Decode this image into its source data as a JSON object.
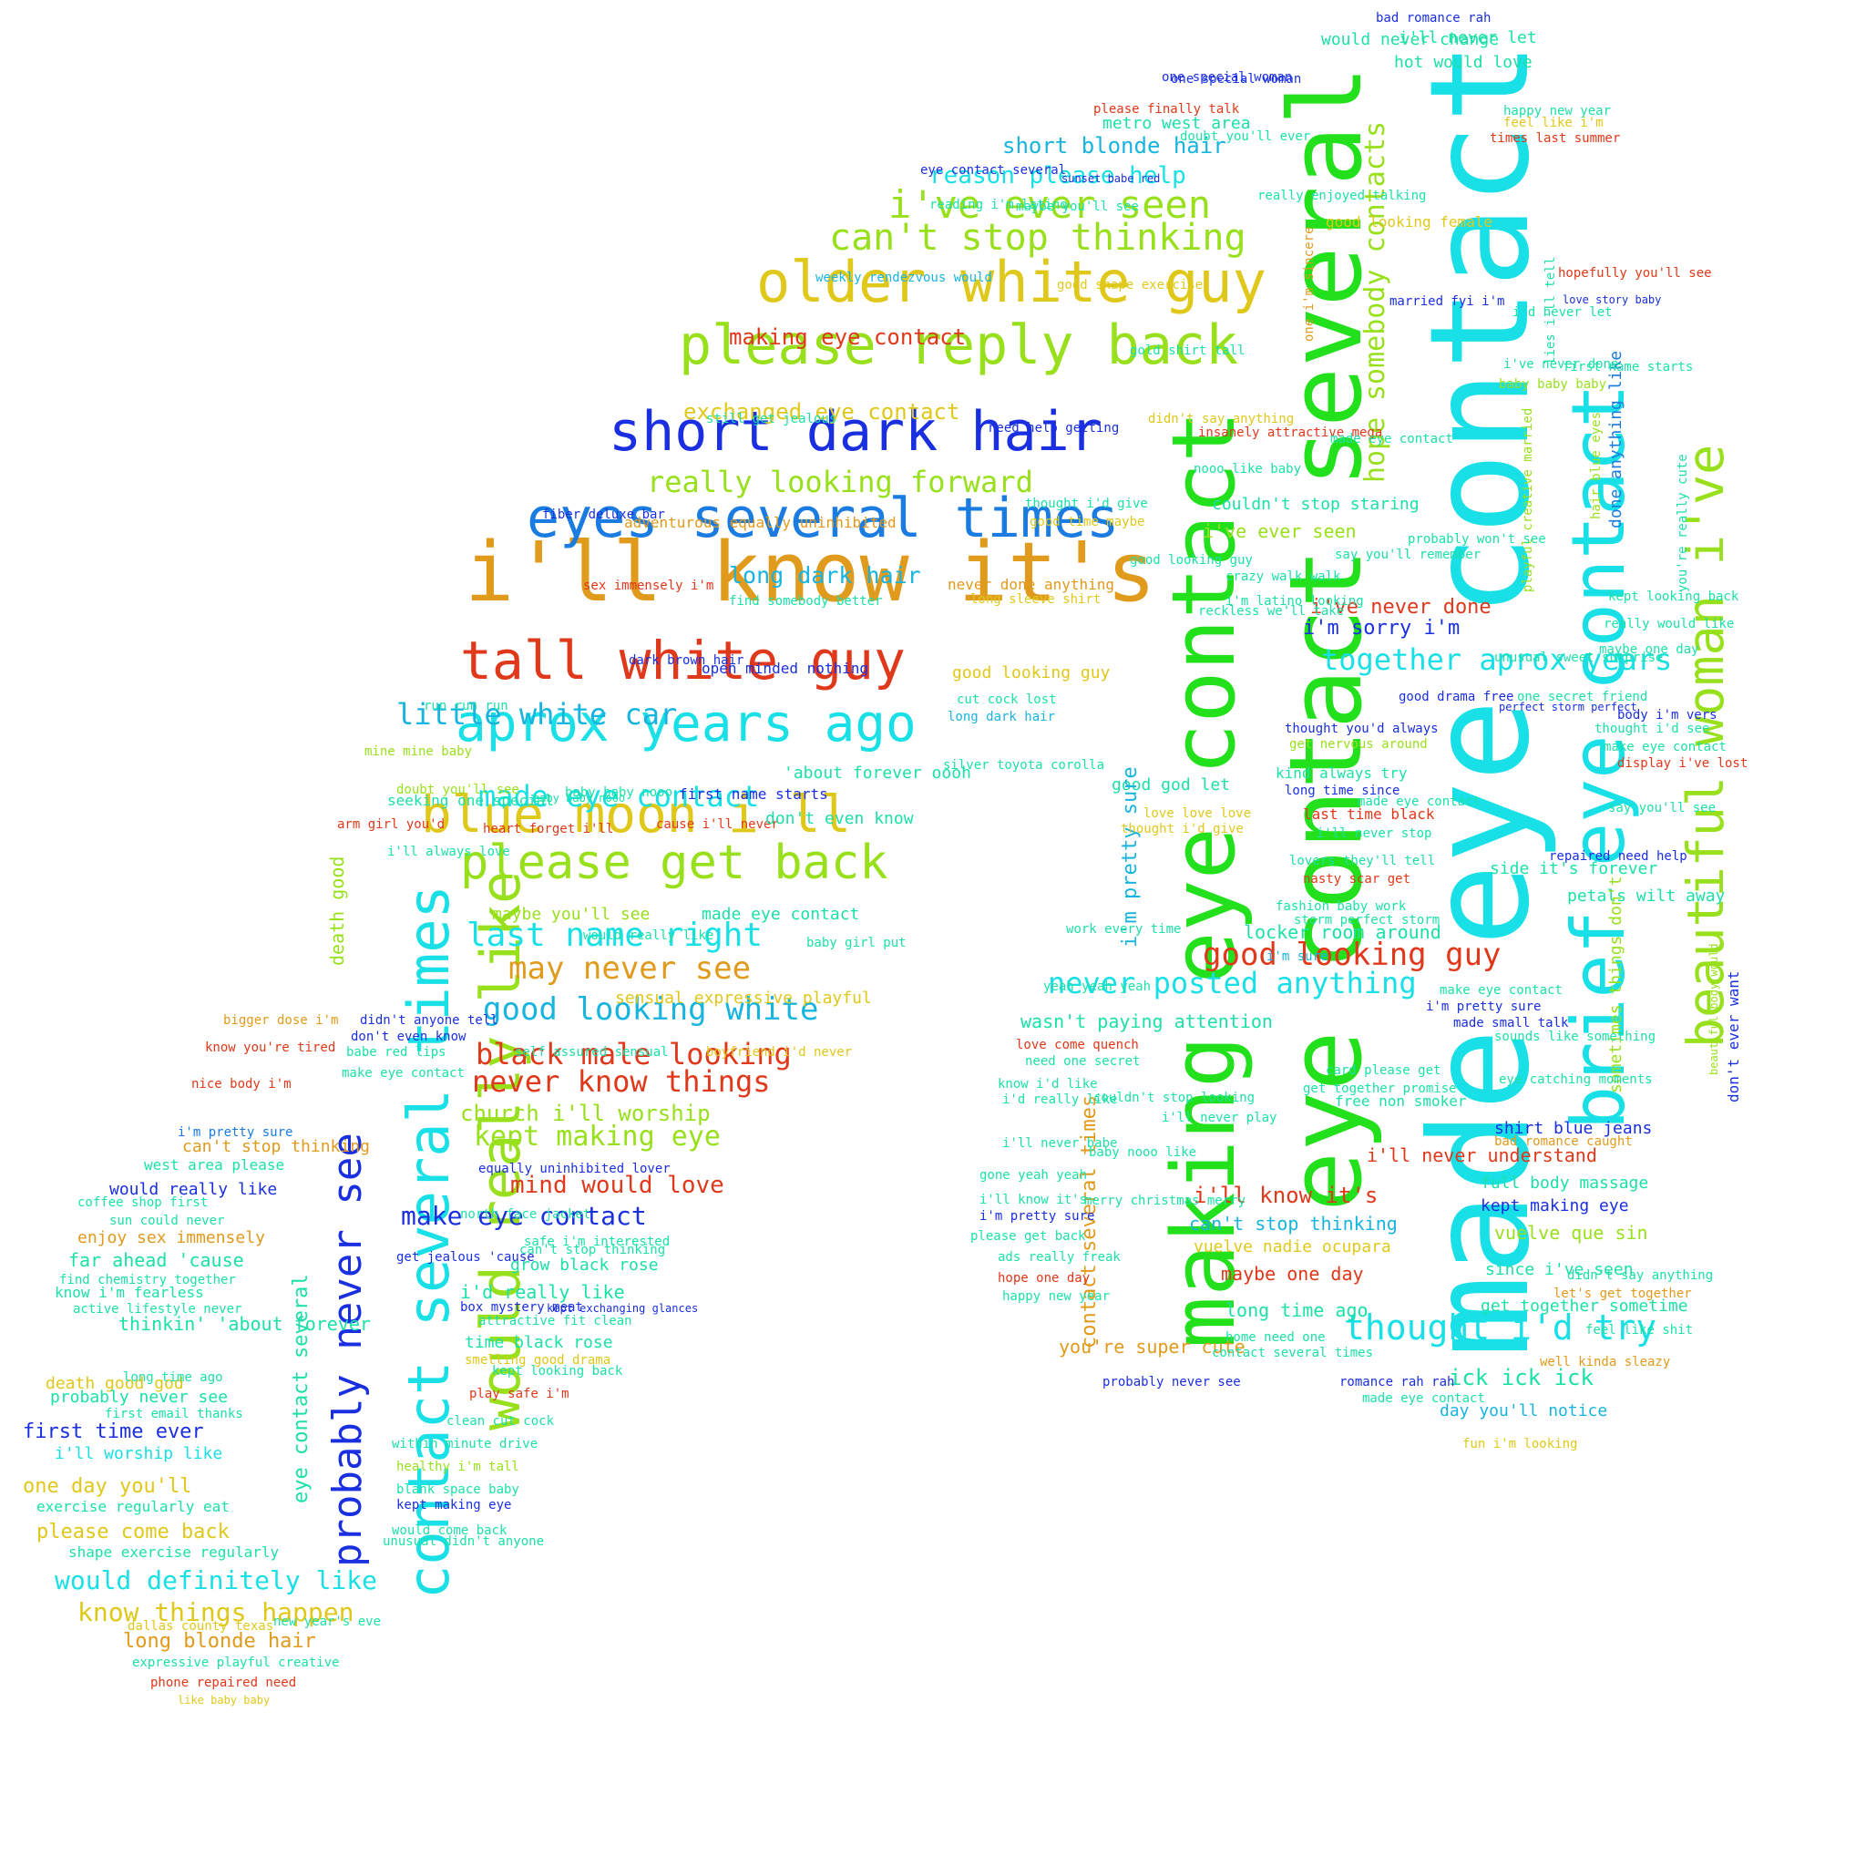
{
  "palette": {
    "cyan": "#18e0e6",
    "green": "#22e01c",
    "lime": "#98e01c",
    "yellow": "#e0c81a",
    "orange": "#e09a1c",
    "red": "#e0381a",
    "blue": "#1a2fe0",
    "azure": "#1a7be0",
    "sky": "#18b4e0",
    "teal": "#1ce0a8"
  },
  "words": [
    {
      "text": "made eye contact",
      "color": "cyan"
    },
    {
      "text": "eye contact several",
      "color": "green"
    },
    {
      "text": "making eye contact",
      "color": "green"
    },
    {
      "text": "brief eye contact",
      "color": "cyan"
    },
    {
      "text": "beautiful woman i've",
      "color": "lime"
    },
    {
      "text": "i'll know it's",
      "color": "orange"
    },
    {
      "text": "older white guy",
      "color": "yellow"
    },
    {
      "text": "please reply back",
      "color": "lime"
    },
    {
      "text": "short dark hair",
      "color": "blue"
    },
    {
      "text": "eyes several times",
      "color": "azure"
    },
    {
      "text": "tall white guy",
      "color": "red"
    },
    {
      "text": "aprox years ago",
      "color": "cyan"
    },
    {
      "text": "blue moon i ll",
      "color": "yellow"
    },
    {
      "text": "please get back",
      "color": "lime"
    },
    {
      "text": "contact several times",
      "color": "cyan"
    },
    {
      "text": "would really like",
      "color": "lime"
    },
    {
      "text": "probably never see",
      "color": "blue"
    },
    {
      "text": "i've ever seen",
      "color": "lime"
    },
    {
      "text": "can't stop thinking",
      "color": "lime"
    },
    {
      "text": "really looking forward",
      "color": "lime"
    },
    {
      "text": "long dark hair",
      "color": "sky"
    },
    {
      "text": "little white car",
      "color": "sky"
    },
    {
      "text": "made eye contact",
      "color": "cyan"
    },
    {
      "text": "last name right",
      "color": "cyan"
    },
    {
      "text": "may never see",
      "color": "orange"
    },
    {
      "text": "good looking white",
      "color": "sky"
    },
    {
      "text": "black male looking",
      "color": "red"
    },
    {
      "text": "never know things",
      "color": "red"
    },
    {
      "text": "kept making eye",
      "color": "lime"
    },
    {
      "text": "make eye contact",
      "color": "blue"
    },
    {
      "text": "mind would love",
      "color": "red"
    },
    {
      "text": "good looking guy",
      "color": "red"
    },
    {
      "text": "never posted anything",
      "color": "cyan"
    },
    {
      "text": "together aprox years",
      "color": "cyan"
    },
    {
      "text": "thought i'd try",
      "color": "cyan"
    },
    {
      "text": "know things happen",
      "color": "yellow"
    },
    {
      "text": "would definitely like",
      "color": "cyan"
    },
    {
      "text": "one day you'll",
      "color": "yellow"
    },
    {
      "text": "first time ever",
      "color": "blue"
    },
    {
      "text": "please come back",
      "color": "yellow"
    },
    {
      "text": "long blonde hair",
      "color": "orange"
    },
    {
      "text": "would really like",
      "color": "blue"
    },
    {
      "text": "far ahead 'cause",
      "color": "teal"
    },
    {
      "text": "thinkin' 'about forever",
      "color": "teal"
    },
    {
      "text": "death good god",
      "color": "yellow"
    },
    {
      "text": "i'll worship like",
      "color": "cyan"
    },
    {
      "text": "exercise regularly eat",
      "color": "teal"
    },
    {
      "text": "short blonde hair",
      "color": "sky"
    },
    {
      "text": "reason please help",
      "color": "cyan"
    },
    {
      "text": "exchanged eye contact",
      "color": "yellow"
    },
    {
      "text": "making eye contact",
      "color": "red"
    },
    {
      "text": "hot would love",
      "color": "teal"
    },
    {
      "text": "would never change",
      "color": "teal"
    },
    {
      "text": "one special woman",
      "color": "blue"
    },
    {
      "text": "metro west area",
      "color": "teal"
    },
    {
      "text": "bad romance rah",
      "color": "blue"
    },
    {
      "text": "somebody contacts",
      "color": "lime"
    },
    {
      "text": "hope",
      "color": "lime"
    },
    {
      "text": "i've never done",
      "color": "red"
    },
    {
      "text": "i'm sorry i'm",
      "color": "blue"
    },
    {
      "text": "couldn't stop staring",
      "color": "teal"
    },
    {
      "text": "i've ever seen",
      "color": "lime"
    },
    {
      "text": "i'll never understand",
      "color": "red"
    },
    {
      "text": "full body massage",
      "color": "teal"
    },
    {
      "text": "kept making eye",
      "color": "blue"
    },
    {
      "text": "vuelve que sin",
      "color": "lime"
    },
    {
      "text": "since i've seen",
      "color": "teal"
    },
    {
      "text": "get together sometime",
      "color": "teal"
    },
    {
      "text": "shirt blue jeans",
      "color": "blue"
    },
    {
      "text": "ick ick ick",
      "color": "teal"
    },
    {
      "text": "day you'll notice",
      "color": "sky"
    },
    {
      "text": "long time ago",
      "color": "teal"
    },
    {
      "text": "maybe one day",
      "color": "red"
    },
    {
      "text": "you're super cute",
      "color": "orange"
    },
    {
      "text": "can't stop thinking",
      "color": "sky"
    },
    {
      "text": "vuelve nadie ocupara",
      "color": "yellow"
    },
    {
      "text": "i'll know it's",
      "color": "red"
    },
    {
      "text": "wasn't paying attention",
      "color": "teal"
    },
    {
      "text": "side it's forever",
      "color": "teal"
    },
    {
      "text": "petals wilt away",
      "color": "teal"
    },
    {
      "text": "locker room around",
      "color": "teal"
    },
    {
      "text": "church i'll worship",
      "color": "lime"
    },
    {
      "text": "grow black rose",
      "color": "teal"
    },
    {
      "text": "i'd really like",
      "color": "teal"
    },
    {
      "text": "time black rose",
      "color": "teal"
    },
    {
      "text": "open minded nothing",
      "color": "blue"
    },
    {
      "text": "good looking guy",
      "color": "yellow"
    },
    {
      "text": "adventurous equally uninhibited",
      "color": "orange"
    },
    {
      "text": "sex immensely i'm",
      "color": "red"
    },
    {
      "text": "weekly rendezvous would",
      "color": "sky"
    },
    {
      "text": "maybe you'll see",
      "color": "lime"
    },
    {
      "text": "made eye contact",
      "color": "teal"
    },
    {
      "text": "sensual expressive playful",
      "color": "yellow"
    },
    {
      "text": "equally uninhibited lover",
      "color": "blue"
    },
    {
      "text": "good god let",
      "color": "teal"
    },
    {
      "text": "i'm pretty sure",
      "color": "sky"
    },
    {
      "text": "contact several times",
      "color": "orange"
    },
    {
      "text": "last time black",
      "color": "red"
    },
    {
      "text": "done anything like",
      "color": "azure"
    },
    {
      "text": "hair blue eyes",
      "color": "lime"
    },
    {
      "text": "playful creative married",
      "color": "lime"
    },
    {
      "text": "lies i'll tell",
      "color": "teal"
    },
    {
      "text": "don't ever want",
      "color": "blue"
    },
    {
      "text": "beautiful body would",
      "color": "lime"
    },
    {
      "text": "sometimes things don't",
      "color": "lime"
    },
    {
      "text": "enjoy sex immensely",
      "color": "orange"
    },
    {
      "text": "can't stop thinking",
      "color": "orange"
    },
    {
      "text": "west area please",
      "color": "teal"
    },
    {
      "text": "i'm pretty sure",
      "color": "azure"
    },
    {
      "text": "nice body i'm",
      "color": "red"
    },
    {
      "text": "know you're tired",
      "color": "red"
    },
    {
      "text": "bigger dose i'm",
      "color": "orange"
    },
    {
      "text": "coffee shop first",
      "color": "teal"
    },
    {
      "text": "sun could never",
      "color": "teal"
    },
    {
      "text": "find chemistry together",
      "color": "teal"
    },
    {
      "text": "active lifestyle never",
      "color": "teal"
    },
    {
      "text": "know i'm fearless",
      "color": "teal"
    },
    {
      "text": "probably never see",
      "color": "teal"
    },
    {
      "text": "long time ago",
      "color": "teal"
    },
    {
      "text": "first email thanks",
      "color": "teal"
    },
    {
      "text": "shape exercise regularly",
      "color": "teal"
    },
    {
      "text": "dallas county texas",
      "color": "yellow"
    },
    {
      "text": "expressive playful creative",
      "color": "teal"
    },
    {
      "text": "phone repaired need",
      "color": "red"
    },
    {
      "text": "like baby baby",
      "color": "yellow"
    },
    {
      "text": "clean cut cock",
      "color": "teal"
    },
    {
      "text": "kept looking back",
      "color": "teal"
    },
    {
      "text": "play safe i'm",
      "color": "red"
    },
    {
      "text": "within minute drive",
      "color": "teal"
    },
    {
      "text": "healthy i'm tall",
      "color": "lime"
    },
    {
      "text": "attractive fit clean",
      "color": "teal"
    },
    {
      "text": "smelling good drama",
      "color": "yellow"
    },
    {
      "text": "north face jacket",
      "color": "teal"
    },
    {
      "text": "safe i'm interested",
      "color": "teal"
    },
    {
      "text": "first name starts",
      "color": "blue"
    },
    {
      "text": "cause i'll never",
      "color": "red"
    },
    {
      "text": "heart forget i'll",
      "color": "red"
    },
    {
      "text": "seeking one special",
      "color": "teal"
    },
    {
      "text": "arm girl you'd",
      "color": "red"
    },
    {
      "text": "run run run",
      "color": "teal"
    },
    {
      "text": "mine mine baby",
      "color": "lime"
    },
    {
      "text": "doubt you'll see",
      "color": "lime"
    },
    {
      "text": "death good",
      "color": "lime"
    },
    {
      "text": "eye contact several",
      "color": "teal"
    },
    {
      "text": "baby baby nooo",
      "color": "teal"
    },
    {
      "text": "'about forever oooh",
      "color": "teal"
    },
    {
      "text": "don't even know",
      "color": "teal"
    },
    {
      "text": "silver toyota corolla",
      "color": "teal"
    },
    {
      "text": "long dark hair",
      "color": "sky"
    },
    {
      "text": "cut cock lost",
      "color": "teal"
    },
    {
      "text": "never done anything",
      "color": "orange"
    },
    {
      "text": "long sleeve shirt",
      "color": "yellow"
    },
    {
      "text": "good time maybe",
      "color": "yellow"
    },
    {
      "text": "thought i'd give",
      "color": "teal"
    },
    {
      "text": "fiber deluxe bar",
      "color": "blue"
    },
    {
      "text": "need help getting",
      "color": "blue"
    },
    {
      "text": "insanely attractive mega",
      "color": "red"
    },
    {
      "text": "didn't say anything",
      "color": "yellow"
    },
    {
      "text": "good shape exercise",
      "color": "yellow"
    },
    {
      "text": "married fyi i'm",
      "color": "blue"
    },
    {
      "text": "good looking female",
      "color": "yellow"
    },
    {
      "text": "please finally talk",
      "color": "red"
    },
    {
      "text": "times last summer",
      "color": "red"
    },
    {
      "text": "doubt you'll ever",
      "color": "teal"
    },
    {
      "text": "baby baby baby",
      "color": "lime"
    },
    {
      "text": "i've never done",
      "color": "teal"
    },
    {
      "text": "you're really cute",
      "color": "teal"
    },
    {
      "text": "body i'm vers",
      "color": "blue"
    },
    {
      "text": "make eye contact",
      "color": "teal"
    },
    {
      "text": "display i've lost",
      "color": "red"
    },
    {
      "text": "say you'll see",
      "color": "teal"
    },
    {
      "text": "repaired need help",
      "color": "blue"
    },
    {
      "text": "good drama free",
      "color": "blue"
    },
    {
      "text": "thought you'd always",
      "color": "blue"
    },
    {
      "text": "get nervous around",
      "color": "lime"
    },
    {
      "text": "kind always try",
      "color": "teal"
    },
    {
      "text": "long time since",
      "color": "blue"
    },
    {
      "text": "love love love",
      "color": "yellow"
    },
    {
      "text": "thought i'd give",
      "color": "yellow"
    },
    {
      "text": "i'll never stop",
      "color": "teal"
    },
    {
      "text": "lovers they'll tell",
      "color": "teal"
    },
    {
      "text": "nasty scar get",
      "color": "red"
    },
    {
      "text": "fashion baby work",
      "color": "teal"
    },
    {
      "text": "storm perfect storm",
      "color": "teal"
    },
    {
      "text": "free non smoker",
      "color": "teal"
    },
    {
      "text": "card please get",
      "color": "teal"
    },
    {
      "text": "get together promise",
      "color": "teal"
    },
    {
      "text": "need one secret",
      "color": "teal"
    },
    {
      "text": "couldn't stop looking",
      "color": "teal"
    },
    {
      "text": "i'll never play",
      "color": "teal"
    },
    {
      "text": "i'll never babe",
      "color": "teal"
    },
    {
      "text": "baby nooo like",
      "color": "teal"
    },
    {
      "text": "merry christmas merry",
      "color": "teal"
    },
    {
      "text": "i'll know it's",
      "color": "teal"
    },
    {
      "text": "please get back",
      "color": "teal"
    },
    {
      "text": "ads really freak",
      "color": "teal"
    },
    {
      "text": "probably never see",
      "color": "blue"
    },
    {
      "text": "home need one",
      "color": "teal"
    },
    {
      "text": "contact several times",
      "color": "teal"
    },
    {
      "text": "romance rah rah",
      "color": "blue"
    },
    {
      "text": "made eye contact",
      "color": "teal"
    },
    {
      "text": "fun i'm looking",
      "color": "yellow"
    },
    {
      "text": "well kinda sleazy",
      "color": "orange"
    },
    {
      "text": "feel like shit",
      "color": "teal"
    },
    {
      "text": "let's get together",
      "color": "orange"
    },
    {
      "text": "bad romance caught",
      "color": "orange"
    },
    {
      "text": "didn't say anything",
      "color": "teal"
    },
    {
      "text": "yeah yeah yeah",
      "color": "teal"
    },
    {
      "text": "work every time",
      "color": "teal"
    },
    {
      "text": "love come quench",
      "color": "red"
    },
    {
      "text": "i'd really like",
      "color": "teal"
    },
    {
      "text": "know i'd like",
      "color": "teal"
    },
    {
      "text": "gone yeah yeah",
      "color": "teal"
    },
    {
      "text": "i'm pretty sure",
      "color": "blue"
    },
    {
      "text": "hope one day",
      "color": "red"
    },
    {
      "text": "happy new year",
      "color": "teal"
    },
    {
      "text": "i'm sure",
      "color": "sky"
    },
    {
      "text": "i'm pretty sure",
      "color": "blue"
    },
    {
      "text": "made small talk",
      "color": "blue"
    },
    {
      "text": "sounds like something",
      "color": "teal"
    },
    {
      "text": "eye catching moments",
      "color": "teal"
    },
    {
      "text": "make eye contact",
      "color": "teal"
    },
    {
      "text": "made eye contact",
      "color": "teal"
    },
    {
      "text": "unusual sweet surprise",
      "color": "teal"
    },
    {
      "text": "one secret friend",
      "color": "teal"
    },
    {
      "text": "thought i'd see",
      "color": "teal"
    },
    {
      "text": "maybe one day",
      "color": "teal"
    },
    {
      "text": "really would like",
      "color": "teal"
    },
    {
      "text": "kept looking back",
      "color": "teal"
    },
    {
      "text": "perfect storm perfect",
      "color": "blue"
    },
    {
      "text": "i'm latino looking",
      "color": "teal"
    },
    {
      "text": "crazy walk walk",
      "color": "teal"
    },
    {
      "text": "reckless we'll take",
      "color": "teal"
    },
    {
      "text": "nooo like baby",
      "color": "teal"
    },
    {
      "text": "say you'll remember",
      "color": "teal"
    },
    {
      "text": "probably won't see",
      "color": "teal"
    },
    {
      "text": "one i'm sincere",
      "color": "orange"
    },
    {
      "text": "i'll never let",
      "color": "teal"
    },
    {
      "text": "happy new year",
      "color": "teal"
    },
    {
      "text": "feel like i'm",
      "color": "yellow"
    },
    {
      "text": "i'd never let",
      "color": "teal"
    },
    {
      "text": "first name starts",
      "color": "teal"
    },
    {
      "text": "love story baby",
      "color": "blue"
    },
    {
      "text": "hopefully you'll see",
      "color": "red"
    },
    {
      "text": "sunset babe red",
      "color": "blue"
    },
    {
      "text": "eye contact several",
      "color": "blue"
    },
    {
      "text": "reading i'm latino",
      "color": "teal"
    },
    {
      "text": "maybe you'll see",
      "color": "teal"
    },
    {
      "text": "really enjoyed talking",
      "color": "teal"
    },
    {
      "text": "gold shirt tall",
      "color": "teal"
    },
    {
      "text": "still get jealous",
      "color": "teal"
    },
    {
      "text": "made eye contact",
      "color": "teal"
    },
    {
      "text": "baby girl put",
      "color": "teal"
    },
    {
      "text": "would really like",
      "color": "teal"
    },
    {
      "text": "self assured sensual",
      "color": "teal"
    },
    {
      "text": "boyfriend i'd never",
      "color": "yellow"
    },
    {
      "text": "find somebody better",
      "color": "teal"
    },
    {
      "text": "dark brown hair",
      "color": "blue"
    },
    {
      "text": "baby baby nooo",
      "color": "teal"
    },
    {
      "text": "i'll always love",
      "color": "teal"
    },
    {
      "text": "get jealous 'cause",
      "color": "blue"
    },
    {
      "text": "don't even know",
      "color": "blue"
    },
    {
      "text": "didn't anyone tell",
      "color": "blue"
    },
    {
      "text": "babe red lips",
      "color": "teal"
    },
    {
      "text": "make eye contact",
      "color": "teal"
    },
    {
      "text": "one special woman",
      "color": "blue"
    },
    {
      "text": "good looking guy",
      "color": "teal"
    },
    {
      "text": "blank space baby",
      "color": "teal"
    },
    {
      "text": "kept making eye",
      "color": "blue"
    },
    {
      "text": "unusual didn't anyone",
      "color": "teal"
    },
    {
      "text": "would come back",
      "color": "teal"
    },
    {
      "text": "new year's eve",
      "color": "teal"
    },
    {
      "text": "can't stop thinking",
      "color": "teal"
    },
    {
      "text": "box mystery meat",
      "color": "blue"
    },
    {
      "text": "kept exchanging glances",
      "color": "blue"
    }
  ]
}
